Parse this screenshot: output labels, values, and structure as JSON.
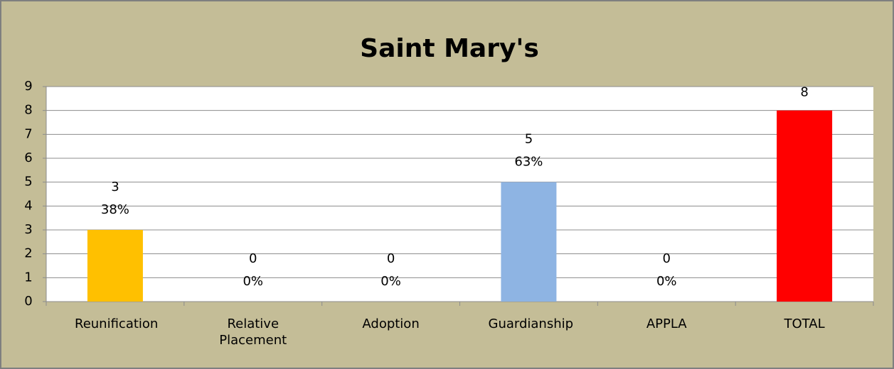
{
  "chart_data": {
    "type": "bar",
    "title": "Saint Mary's",
    "categories": [
      "Reunification",
      "Relative Placement",
      "Adoption",
      "Guardianship",
      "APPLA",
      "TOTAL"
    ],
    "values": [
      3,
      0,
      0,
      5,
      0,
      8
    ],
    "percent_labels": [
      "38%",
      "0%",
      "0%",
      "63%",
      "0%",
      null
    ],
    "colors": [
      "#ffc000",
      "#ffc000",
      "#ffc000",
      "#8eb4e3",
      "#8eb4e3",
      "#ff0000"
    ],
    "ylim": [
      0,
      9
    ],
    "yticks": [
      0,
      1,
      2,
      3,
      4,
      5,
      6,
      7,
      8,
      9
    ],
    "grid": true
  }
}
